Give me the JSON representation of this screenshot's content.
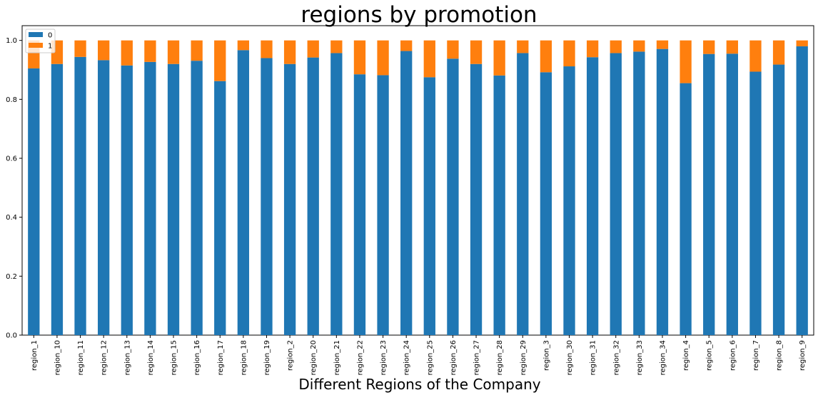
{
  "chart_data": {
    "type": "bar",
    "stacked": true,
    "title": "regions by promotion",
    "xlabel": "Different Regions of the Company",
    "ylabel": "",
    "ylim": [
      0,
      1.05
    ],
    "yticks": [
      0.0,
      0.2,
      0.4,
      0.6,
      0.8,
      1.0
    ],
    "ytick_labels": [
      "0.0",
      "0.2",
      "0.4",
      "0.6",
      "0.8",
      "1.0"
    ],
    "grid": false,
    "legend_position": "top-left",
    "categories": [
      "region_1",
      "region_10",
      "region_11",
      "region_12",
      "region_13",
      "region_14",
      "region_15",
      "region_16",
      "region_17",
      "region_18",
      "region_19",
      "region_2",
      "region_20",
      "region_21",
      "region_22",
      "region_23",
      "region_24",
      "region_25",
      "region_26",
      "region_27",
      "region_28",
      "region_29",
      "region_3",
      "region_30",
      "region_31",
      "region_32",
      "region_33",
      "region_34",
      "region_4",
      "region_5",
      "region_6",
      "region_7",
      "region_8",
      "region_9"
    ],
    "series": [
      {
        "name": "0",
        "color": "#1f77b4",
        "values": [
          0.905,
          0.92,
          0.944,
          0.933,
          0.915,
          0.927,
          0.92,
          0.931,
          0.862,
          0.967,
          0.94,
          0.92,
          0.942,
          0.957,
          0.885,
          0.882,
          0.964,
          0.875,
          0.938,
          0.92,
          0.881,
          0.957,
          0.892,
          0.912,
          0.943,
          0.957,
          0.962,
          0.971,
          0.855,
          0.954,
          0.955,
          0.894,
          0.918,
          0.98
        ]
      },
      {
        "name": "1",
        "color": "#ff7f0e",
        "values": [
          0.095,
          0.08,
          0.056,
          0.067,
          0.085,
          0.073,
          0.08,
          0.069,
          0.138,
          0.033,
          0.06,
          0.08,
          0.058,
          0.043,
          0.115,
          0.118,
          0.036,
          0.125,
          0.062,
          0.08,
          0.119,
          0.043,
          0.108,
          0.088,
          0.057,
          0.043,
          0.038,
          0.029,
          0.145,
          0.046,
          0.045,
          0.106,
          0.082,
          0.02
        ]
      }
    ]
  }
}
